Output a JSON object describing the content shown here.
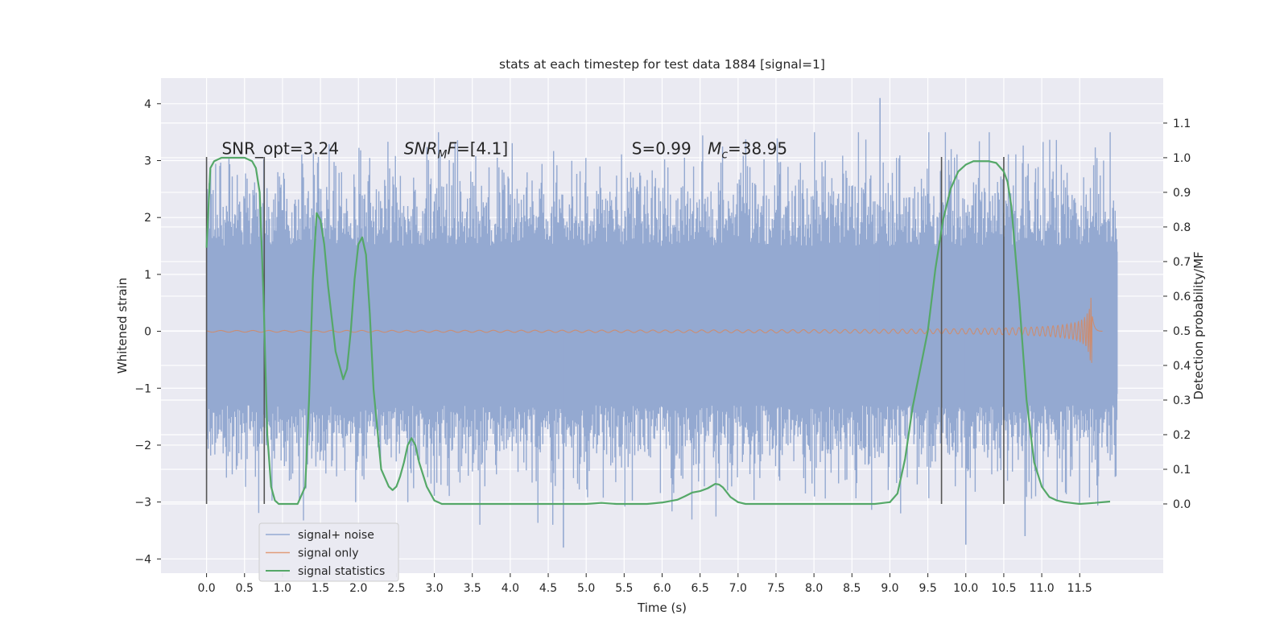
{
  "chart_data": {
    "type": "line",
    "title": "stats at each timestep for test data 1884 [signal=1]",
    "xlabel": "Time (s)",
    "ylabel_left": "Whitened strain",
    "ylabel_right": "Detection probability/MF",
    "xlim": [
      -0.6,
      12.6
    ],
    "ylim_left": [
      -4.25,
      4.45
    ],
    "ylim_right": [
      -0.2,
      1.23
    ],
    "x_ticks": [
      0.0,
      0.5,
      1.0,
      1.5,
      2.0,
      2.5,
      3.0,
      3.5,
      4.0,
      4.5,
      5.0,
      5.5,
      6.0,
      6.5,
      7.0,
      7.5,
      8.0,
      8.5,
      9.0,
      9.5,
      10.0,
      10.5,
      11.0,
      11.5
    ],
    "x_tick_labels": [
      "0.0",
      "0.5",
      "1.0",
      "1.5",
      "2.0",
      "2.5",
      "3.0",
      "3.5",
      "4.0",
      "4.5",
      "5.0",
      "5.5",
      "6.0",
      "6.5",
      "7.0",
      "7.5",
      "8.0",
      "8.5",
      "9.0",
      "9.5",
      "10.0",
      "10.5",
      "11.0",
      "11.5"
    ],
    "y_left_ticks": [
      -4,
      -3,
      -2,
      -1,
      0,
      1,
      2,
      3,
      4
    ],
    "y_left_tick_labels": [
      "−4",
      "−3",
      "−2",
      "−1",
      "0",
      "1",
      "2",
      "3",
      "4"
    ],
    "y_right_ticks": [
      0.0,
      0.1,
      0.2,
      0.3,
      0.4,
      0.5,
      0.6,
      0.7,
      0.8,
      0.9,
      1.0,
      1.1
    ],
    "y_right_tick_labels": [
      "0.0",
      "0.1",
      "0.2",
      "0.3",
      "0.4",
      "0.5",
      "0.6",
      "0.7",
      "0.8",
      "0.9",
      "1.0",
      "1.1"
    ],
    "grid": true,
    "legend_position": "lower-left",
    "annotations": [
      {
        "text": "SNR_opt=3.24",
        "x": 0.2,
        "y_right": 1.01
      },
      {
        "text": "SNR",
        "sub": "M",
        "suffix": "F=[4.1]",
        "italic": true,
        "x": 2.6,
        "y_right": 1.01
      },
      {
        "text": "S",
        "suffix": "=0.99",
        "x": 5.6,
        "y_right": 1.01
      },
      {
        "text": "M",
        "sub": "c",
        "suffix": "=38.95",
        "x": 6.6,
        "y_right": 1.01
      }
    ],
    "vertical_markers": [
      0.0,
      0.76,
      9.68,
      10.5
    ],
    "vertical_marker_range_right": [
      0.0,
      1.0
    ],
    "noise_envelope": {
      "duration": 12.0,
      "dense_range": [
        -1.1,
        1.4
      ],
      "max_peak": 4.1,
      "max_peak_time": 8.87,
      "min_peak": -3.8,
      "min_peak_time": 4.7
    },
    "series": [
      {
        "name": "signal+ noise",
        "color": "#94a9d1",
        "axis": "left",
        "description_values": "dense noise between about -2.5 and 3.5"
      },
      {
        "name": "signal only",
        "color": "#dd8452",
        "axis": "left",
        "chirp": {
          "start": 0.0,
          "peak_time": 11.65,
          "peak_amp": 0.75,
          "end": 11.8
        }
      },
      {
        "name": "signal statistics",
        "color": "#55a868",
        "axis": "right",
        "x": [
          0.0,
          0.05,
          0.1,
          0.2,
          0.3,
          0.4,
          0.5,
          0.6,
          0.65,
          0.7,
          0.75,
          0.8,
          0.85,
          0.9,
          0.95,
          1.0,
          1.1,
          1.2,
          1.3,
          1.35,
          1.4,
          1.45,
          1.5,
          1.55,
          1.6,
          1.7,
          1.75,
          1.8,
          1.85,
          1.9,
          1.95,
          2.0,
          2.05,
          2.1,
          2.15,
          2.2,
          2.3,
          2.4,
          2.45,
          2.5,
          2.55,
          2.6,
          2.65,
          2.7,
          2.75,
          2.8,
          2.9,
          3.0,
          3.1,
          3.2,
          3.5,
          4.0,
          4.5,
          5.0,
          5.2,
          5.4,
          5.6,
          5.8,
          6.0,
          6.2,
          6.3,
          6.4,
          6.5,
          6.6,
          6.7,
          6.75,
          6.8,
          6.9,
          7.0,
          7.1,
          7.3,
          7.5,
          8.0,
          8.5,
          8.8,
          9.0,
          9.1,
          9.2,
          9.3,
          9.4,
          9.5,
          9.6,
          9.7,
          9.8,
          9.9,
          10.0,
          10.1,
          10.2,
          10.3,
          10.4,
          10.5,
          10.55,
          10.6,
          10.7,
          10.8,
          10.9,
          11.0,
          11.1,
          11.2,
          11.3,
          11.5,
          11.7,
          11.9
        ],
        "values": [
          0.74,
          0.97,
          0.99,
          1.0,
          1.0,
          1.0,
          1.0,
          0.99,
          0.97,
          0.9,
          0.6,
          0.2,
          0.05,
          0.01,
          0.0,
          0.0,
          0.0,
          0.0,
          0.05,
          0.3,
          0.65,
          0.84,
          0.82,
          0.75,
          0.63,
          0.44,
          0.4,
          0.36,
          0.39,
          0.5,
          0.65,
          0.75,
          0.77,
          0.72,
          0.55,
          0.33,
          0.1,
          0.05,
          0.04,
          0.05,
          0.08,
          0.12,
          0.17,
          0.19,
          0.17,
          0.12,
          0.05,
          0.01,
          0.0,
          0.0,
          0.0,
          0.0,
          0.0,
          0.0,
          0.003,
          0.0,
          0.0,
          0.0,
          0.004,
          0.012,
          0.022,
          0.033,
          0.037,
          0.045,
          0.058,
          0.056,
          0.048,
          0.02,
          0.005,
          0.0,
          0.0,
          0.0,
          0.0,
          0.0,
          0.0,
          0.005,
          0.03,
          0.13,
          0.28,
          0.39,
          0.5,
          0.68,
          0.82,
          0.91,
          0.96,
          0.98,
          0.99,
          0.99,
          0.99,
          0.985,
          0.96,
          0.93,
          0.86,
          0.6,
          0.3,
          0.12,
          0.05,
          0.02,
          0.01,
          0.005,
          0.0,
          0.003,
          0.007
        ]
      }
    ]
  }
}
